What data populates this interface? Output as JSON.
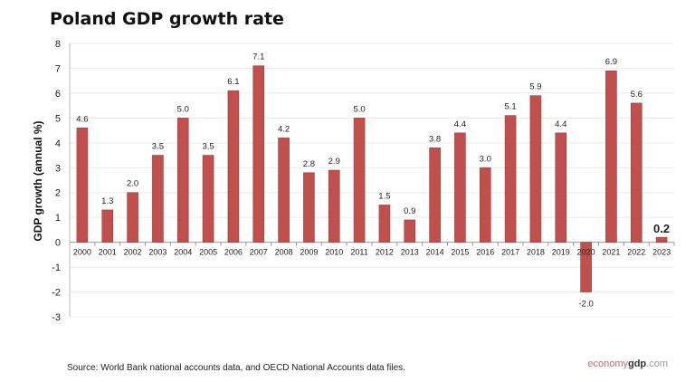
{
  "chart_data": {
    "type": "bar",
    "title": "Poland GDP growth rate",
    "ylabel": "GDP growth (annual %)",
    "xlabel": "",
    "ylim": [
      -3,
      8
    ],
    "yticks": [
      -3,
      -2,
      -1,
      0,
      1,
      2,
      3,
      4,
      5,
      6,
      7,
      8
    ],
    "grid": true,
    "categories": [
      "2000",
      "2001",
      "2002",
      "2003",
      "2004",
      "2005",
      "2006",
      "2007",
      "2008",
      "2009",
      "2010",
      "2011",
      "2012",
      "2013",
      "2014",
      "2015",
      "2016",
      "2017",
      "2018",
      "2019",
      "2020",
      "2021",
      "2022",
      "2023"
    ],
    "values": [
      4.6,
      1.3,
      2.0,
      3.5,
      5.0,
      3.5,
      6.1,
      7.1,
      4.2,
      2.8,
      2.9,
      5.0,
      1.5,
      0.9,
      3.8,
      4.4,
      3.0,
      5.1,
      5.9,
      4.4,
      -2.0,
      6.9,
      5.6,
      0.2
    ],
    "labels": [
      "4.6",
      "1.3",
      "2.0",
      "3.5",
      "5.0",
      "3.5",
      "6.1",
      "7.1",
      "4.2",
      "2.8",
      "2.9",
      "5.0",
      "1.5",
      "0.9",
      "3.8",
      "4.4",
      "3.0",
      "5.1",
      "5.9",
      "4.4",
      "-2.0",
      "6.9",
      "5.6",
      "0.2"
    ],
    "bar_color": "#c0504d"
  },
  "source": "Source:  World Bank national accounts data, and OECD National Accounts data files.",
  "logo": {
    "part1": "economy",
    "part2": "gdp",
    "part3": ".com"
  }
}
